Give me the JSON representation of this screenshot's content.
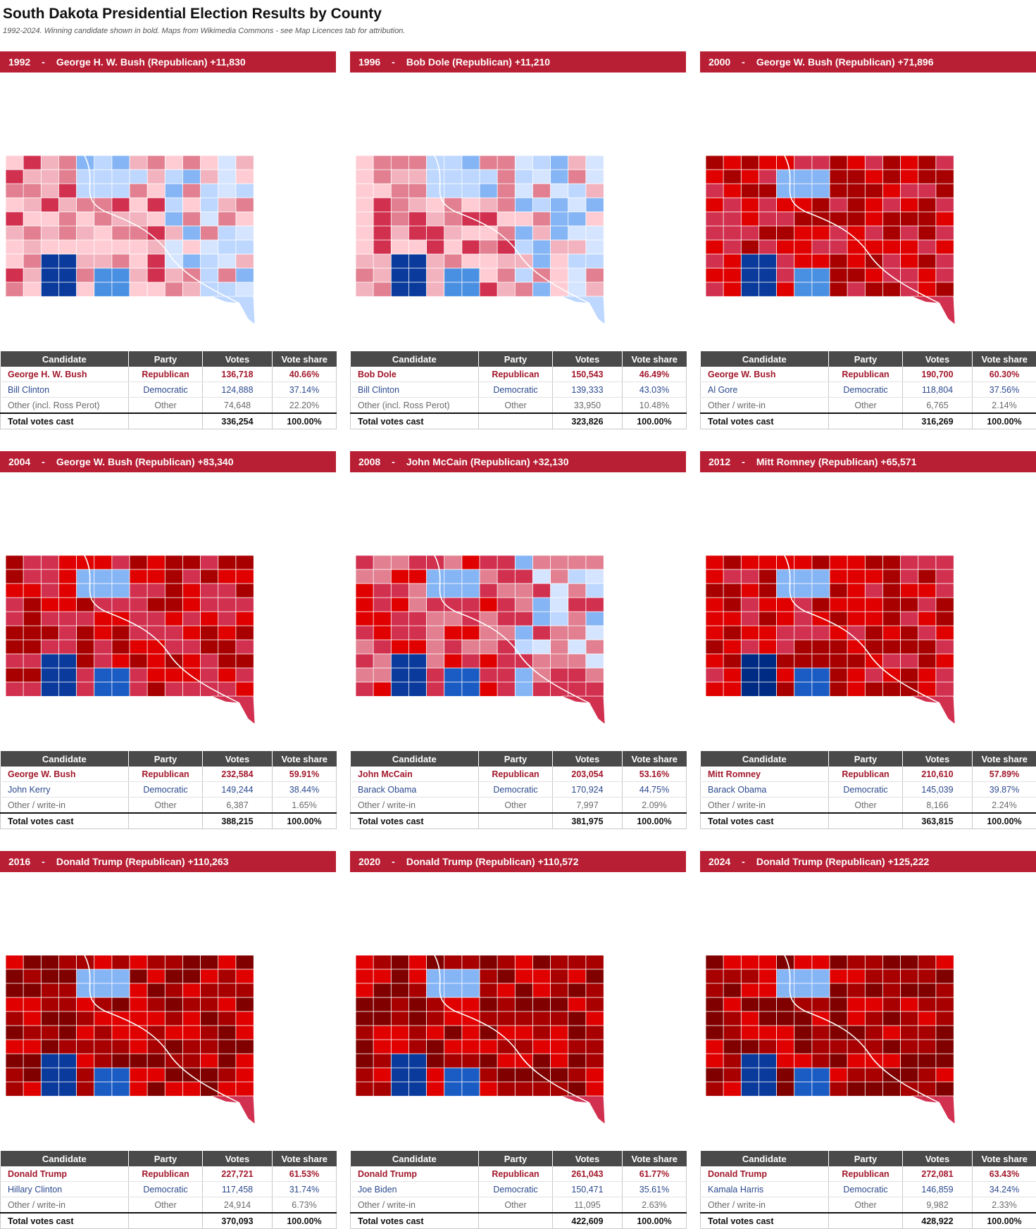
{
  "header": {
    "title": "South Dakota Presidential Election Results by County",
    "subtitle": "1992-2024. Winning candidate shown in bold. Maps from Wikimedia Commons - see Map Licences tab for attribution."
  },
  "table_headers": {
    "candidate": "Candidate",
    "party": "Party",
    "votes": "Votes",
    "share": "Vote share"
  },
  "colors": {
    "banner": "#b81e34",
    "header_row": "#4a4a4a",
    "rep_text": "#a2182b",
    "dem_text": "#2c4a8f",
    "rep_scale": [
      "#ffccd3",
      "#f2b3be",
      "#e27f90",
      "#d2304f",
      "#e00000",
      "#a80000",
      "#800000"
    ],
    "dem_scale": [
      "#d5e4ff",
      "#bdd7ff",
      "#86b5f5",
      "#4a90e2",
      "#1a5bc4",
      "#0a3a9c",
      "#002b84"
    ]
  },
  "elections": [
    {
      "banner": {
        "year": "1992",
        "dash": "-",
        "winner": "George H. W. Bush (Republican) +11,830"
      },
      "rows": [
        {
          "candidate": "George H. W. Bush",
          "party": "Republican",
          "votes": "136,718",
          "share": "40.66%"
        },
        {
          "candidate": "Bill Clinton",
          "party": "Democratic",
          "votes": "124,888",
          "share": "37.14%"
        },
        {
          "candidate": "Other (incl. Ross Perot)",
          "party": "Other",
          "votes": "74,648",
          "share": "22.20%"
        }
      ],
      "total": {
        "label": "Total votes cast",
        "votes": "336,254",
        "share": "100.00%"
      },
      "map": {
        "base": 1,
        "palette": "mixed-light",
        "pine_ridge": "dem-5",
        "rosebud": "dem-3",
        "east": "dem-light"
      }
    },
    {
      "banner": {
        "year": "1996",
        "dash": "-",
        "winner": "Bob Dole (Republican) +11,210"
      },
      "rows": [
        {
          "candidate": "Bob Dole",
          "party": "Republican",
          "votes": "150,543",
          "share": "46.49%"
        },
        {
          "candidate": "Bill Clinton",
          "party": "Democratic",
          "votes": "139,333",
          "share": "43.03%"
        },
        {
          "candidate": "Other (incl. Ross Perot)",
          "party": "Other",
          "votes": "33,950",
          "share": "10.48%"
        }
      ],
      "total": {
        "label": "Total votes cast",
        "votes": "323,826",
        "share": "100.00%"
      },
      "map": {
        "base": 2,
        "palette": "mixed-light",
        "pine_ridge": "dem-5",
        "rosebud": "dem-3",
        "east": "dem-light"
      }
    },
    {
      "banner": {
        "year": "2000",
        "dash": "-",
        "winner": "George W. Bush (Republican) +71,896"
      },
      "rows": [
        {
          "candidate": "George W. Bush",
          "party": "Republican",
          "votes": "190,700",
          "share": "60.30%"
        },
        {
          "candidate": "Al Gore",
          "party": "Democratic",
          "votes": "118,804",
          "share": "37.56%"
        },
        {
          "candidate": "Other / write-in",
          "party": "Other",
          "votes": "6,765",
          "share": "2.14%"
        }
      ],
      "total": {
        "label": "Total votes cast",
        "votes": "316,269",
        "share": "100.00%"
      },
      "map": {
        "base": 4,
        "palette": "rep-strong",
        "pine_ridge": "dem-5",
        "rosebud": "dem-3",
        "east": "rep"
      }
    },
    {
      "banner": {
        "year": "2004",
        "dash": "-",
        "winner": "George W. Bush (Republican) +83,340"
      },
      "rows": [
        {
          "candidate": "George W. Bush",
          "party": "Republican",
          "votes": "232,584",
          "share": "59.91%"
        },
        {
          "candidate": "John Kerry",
          "party": "Democratic",
          "votes": "149,244",
          "share": "38.44%"
        },
        {
          "candidate": "Other / write-in",
          "party": "Other",
          "votes": "6,387",
          "share": "1.65%"
        }
      ],
      "total": {
        "label": "Total votes cast",
        "votes": "388,215",
        "share": "100.00%"
      },
      "map": {
        "base": 4,
        "palette": "rep-strong",
        "pine_ridge": "dem-5",
        "rosebud": "dem-4",
        "east": "rep"
      }
    },
    {
      "banner": {
        "year": "2008",
        "dash": "-",
        "winner": "John McCain (Republican) +32,130"
      },
      "rows": [
        {
          "candidate": "John McCain",
          "party": "Republican",
          "votes": "203,054",
          "share": "53.16%"
        },
        {
          "candidate": "Barack Obama",
          "party": "Democratic",
          "votes": "170,924",
          "share": "44.75%"
        },
        {
          "candidate": "Other / write-in",
          "party": "Other",
          "votes": "7,997",
          "share": "2.09%"
        }
      ],
      "total": {
        "label": "Total votes cast",
        "votes": "381,975",
        "share": "100.00%"
      },
      "map": {
        "base": 3,
        "palette": "rep-mid",
        "pine_ridge": "dem-5",
        "rosebud": "dem-4",
        "east": "mixed"
      }
    },
    {
      "banner": {
        "year": "2012",
        "dash": "-",
        "winner": "Mitt Romney (Republican) +65,571"
      },
      "rows": [
        {
          "candidate": "Mitt Romney",
          "party": "Republican",
          "votes": "210,610",
          "share": "57.89%"
        },
        {
          "candidate": "Barack Obama",
          "party": "Democratic",
          "votes": "145,039",
          "share": "39.87%"
        },
        {
          "candidate": "Other / write-in",
          "party": "Other",
          "votes": "8,166",
          "share": "2.24%"
        }
      ],
      "total": {
        "label": "Total votes cast",
        "votes": "363,815",
        "share": "100.00%"
      },
      "map": {
        "base": 4,
        "palette": "rep-strong",
        "pine_ridge": "dem-6",
        "rosebud": "dem-4",
        "east": "rep"
      }
    },
    {
      "banner": {
        "year": "2016",
        "dash": "-",
        "winner": "Donald Trump (Republican) +110,263"
      },
      "rows": [
        {
          "candidate": "Donald Trump",
          "party": "Republican",
          "votes": "227,721",
          "share": "61.53%"
        },
        {
          "candidate": "Hillary Clinton",
          "party": "Democratic",
          "votes": "117,458",
          "share": "31.74%"
        },
        {
          "candidate": "Other / write-in",
          "party": "Other",
          "votes": "24,914",
          "share": "6.73%"
        }
      ],
      "total": {
        "label": "Total votes cast",
        "votes": "370,093",
        "share": "100.00%"
      },
      "map": {
        "base": 5,
        "palette": "rep-max",
        "pine_ridge": "dem-5",
        "rosebud": "dem-4",
        "east": "rep"
      }
    },
    {
      "banner": {
        "year": "2020",
        "dash": "-",
        "winner": "Donald Trump (Republican) +110,572"
      },
      "rows": [
        {
          "candidate": "Donald Trump",
          "party": "Republican",
          "votes": "261,043",
          "share": "61.77%"
        },
        {
          "candidate": "Joe Biden",
          "party": "Democratic",
          "votes": "150,471",
          "share": "35.61%"
        },
        {
          "candidate": "Other / write-in",
          "party": "Other",
          "votes": "11,095",
          "share": "2.63%"
        }
      ],
      "total": {
        "label": "Total votes cast",
        "votes": "422,609",
        "share": "100.00%"
      },
      "map": {
        "base": 5,
        "palette": "rep-max",
        "pine_ridge": "dem-5",
        "rosebud": "dem-4",
        "east": "rep"
      }
    },
    {
      "banner": {
        "year": "2024",
        "dash": "-",
        "winner": "Donald Trump (Republican) +125,222"
      },
      "rows": [
        {
          "candidate": "Donald Trump",
          "party": "Republican",
          "votes": "272,081",
          "share": "63.43%"
        },
        {
          "candidate": "Kamala Harris",
          "party": "Democratic",
          "votes": "146,859",
          "share": "34.24%"
        },
        {
          "candidate": "Other / write-in",
          "party": "Other",
          "votes": "9,982",
          "share": "2.33%"
        }
      ],
      "total": {
        "label": "Total votes cast",
        "votes": "428,922",
        "share": "100.00%"
      },
      "map": {
        "base": 5,
        "palette": "rep-max",
        "pine_ridge": "dem-5",
        "rosebud": "dem-4",
        "east": "rep"
      }
    }
  ]
}
